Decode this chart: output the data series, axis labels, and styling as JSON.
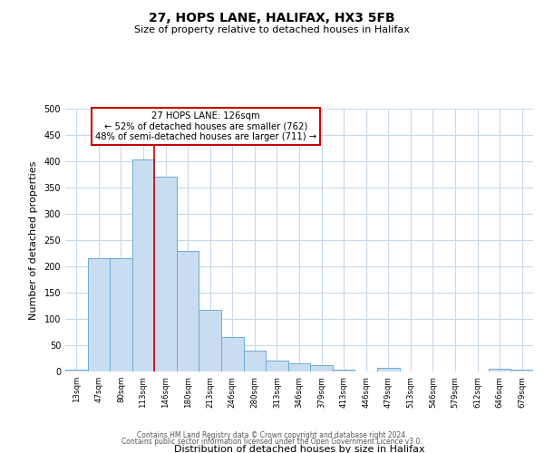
{
  "title": "27, HOPS LANE, HALIFAX, HX3 5FB",
  "subtitle": "Size of property relative to detached houses in Halifax",
  "xlabel": "Distribution of detached houses by size in Halifax",
  "ylabel": "Number of detached properties",
  "categories": [
    "13sqm",
    "47sqm",
    "80sqm",
    "113sqm",
    "146sqm",
    "180sqm",
    "213sqm",
    "246sqm",
    "280sqm",
    "313sqm",
    "346sqm",
    "379sqm",
    "413sqm",
    "446sqm",
    "479sqm",
    "513sqm",
    "546sqm",
    "579sqm",
    "612sqm",
    "646sqm",
    "679sqm"
  ],
  "values": [
    3,
    215,
    215,
    403,
    370,
    230,
    118,
    65,
    40,
    20,
    15,
    12,
    3,
    0,
    7,
    0,
    0,
    0,
    0,
    5,
    3
  ],
  "bar_color": "#c9ddf1",
  "bar_edge_color": "#6aaad4",
  "red_line_index": 3,
  "annotation_title": "27 HOPS LANE: 126sqm",
  "annotation_line1": "← 52% of detached houses are smaller (762)",
  "annotation_line2": "48% of semi-detached houses are larger (711) →",
  "annotation_box_color": "#ffffff",
  "annotation_box_edge": "#cc0000",
  "footer_line1": "Contains HM Land Registry data © Crown copyright and database right 2024.",
  "footer_line2": "Contains public sector information licensed under the Open Government Licence v3.0.",
  "ylim": [
    0,
    500
  ],
  "background_color": "#ffffff",
  "grid_color": "#c8d8e8"
}
